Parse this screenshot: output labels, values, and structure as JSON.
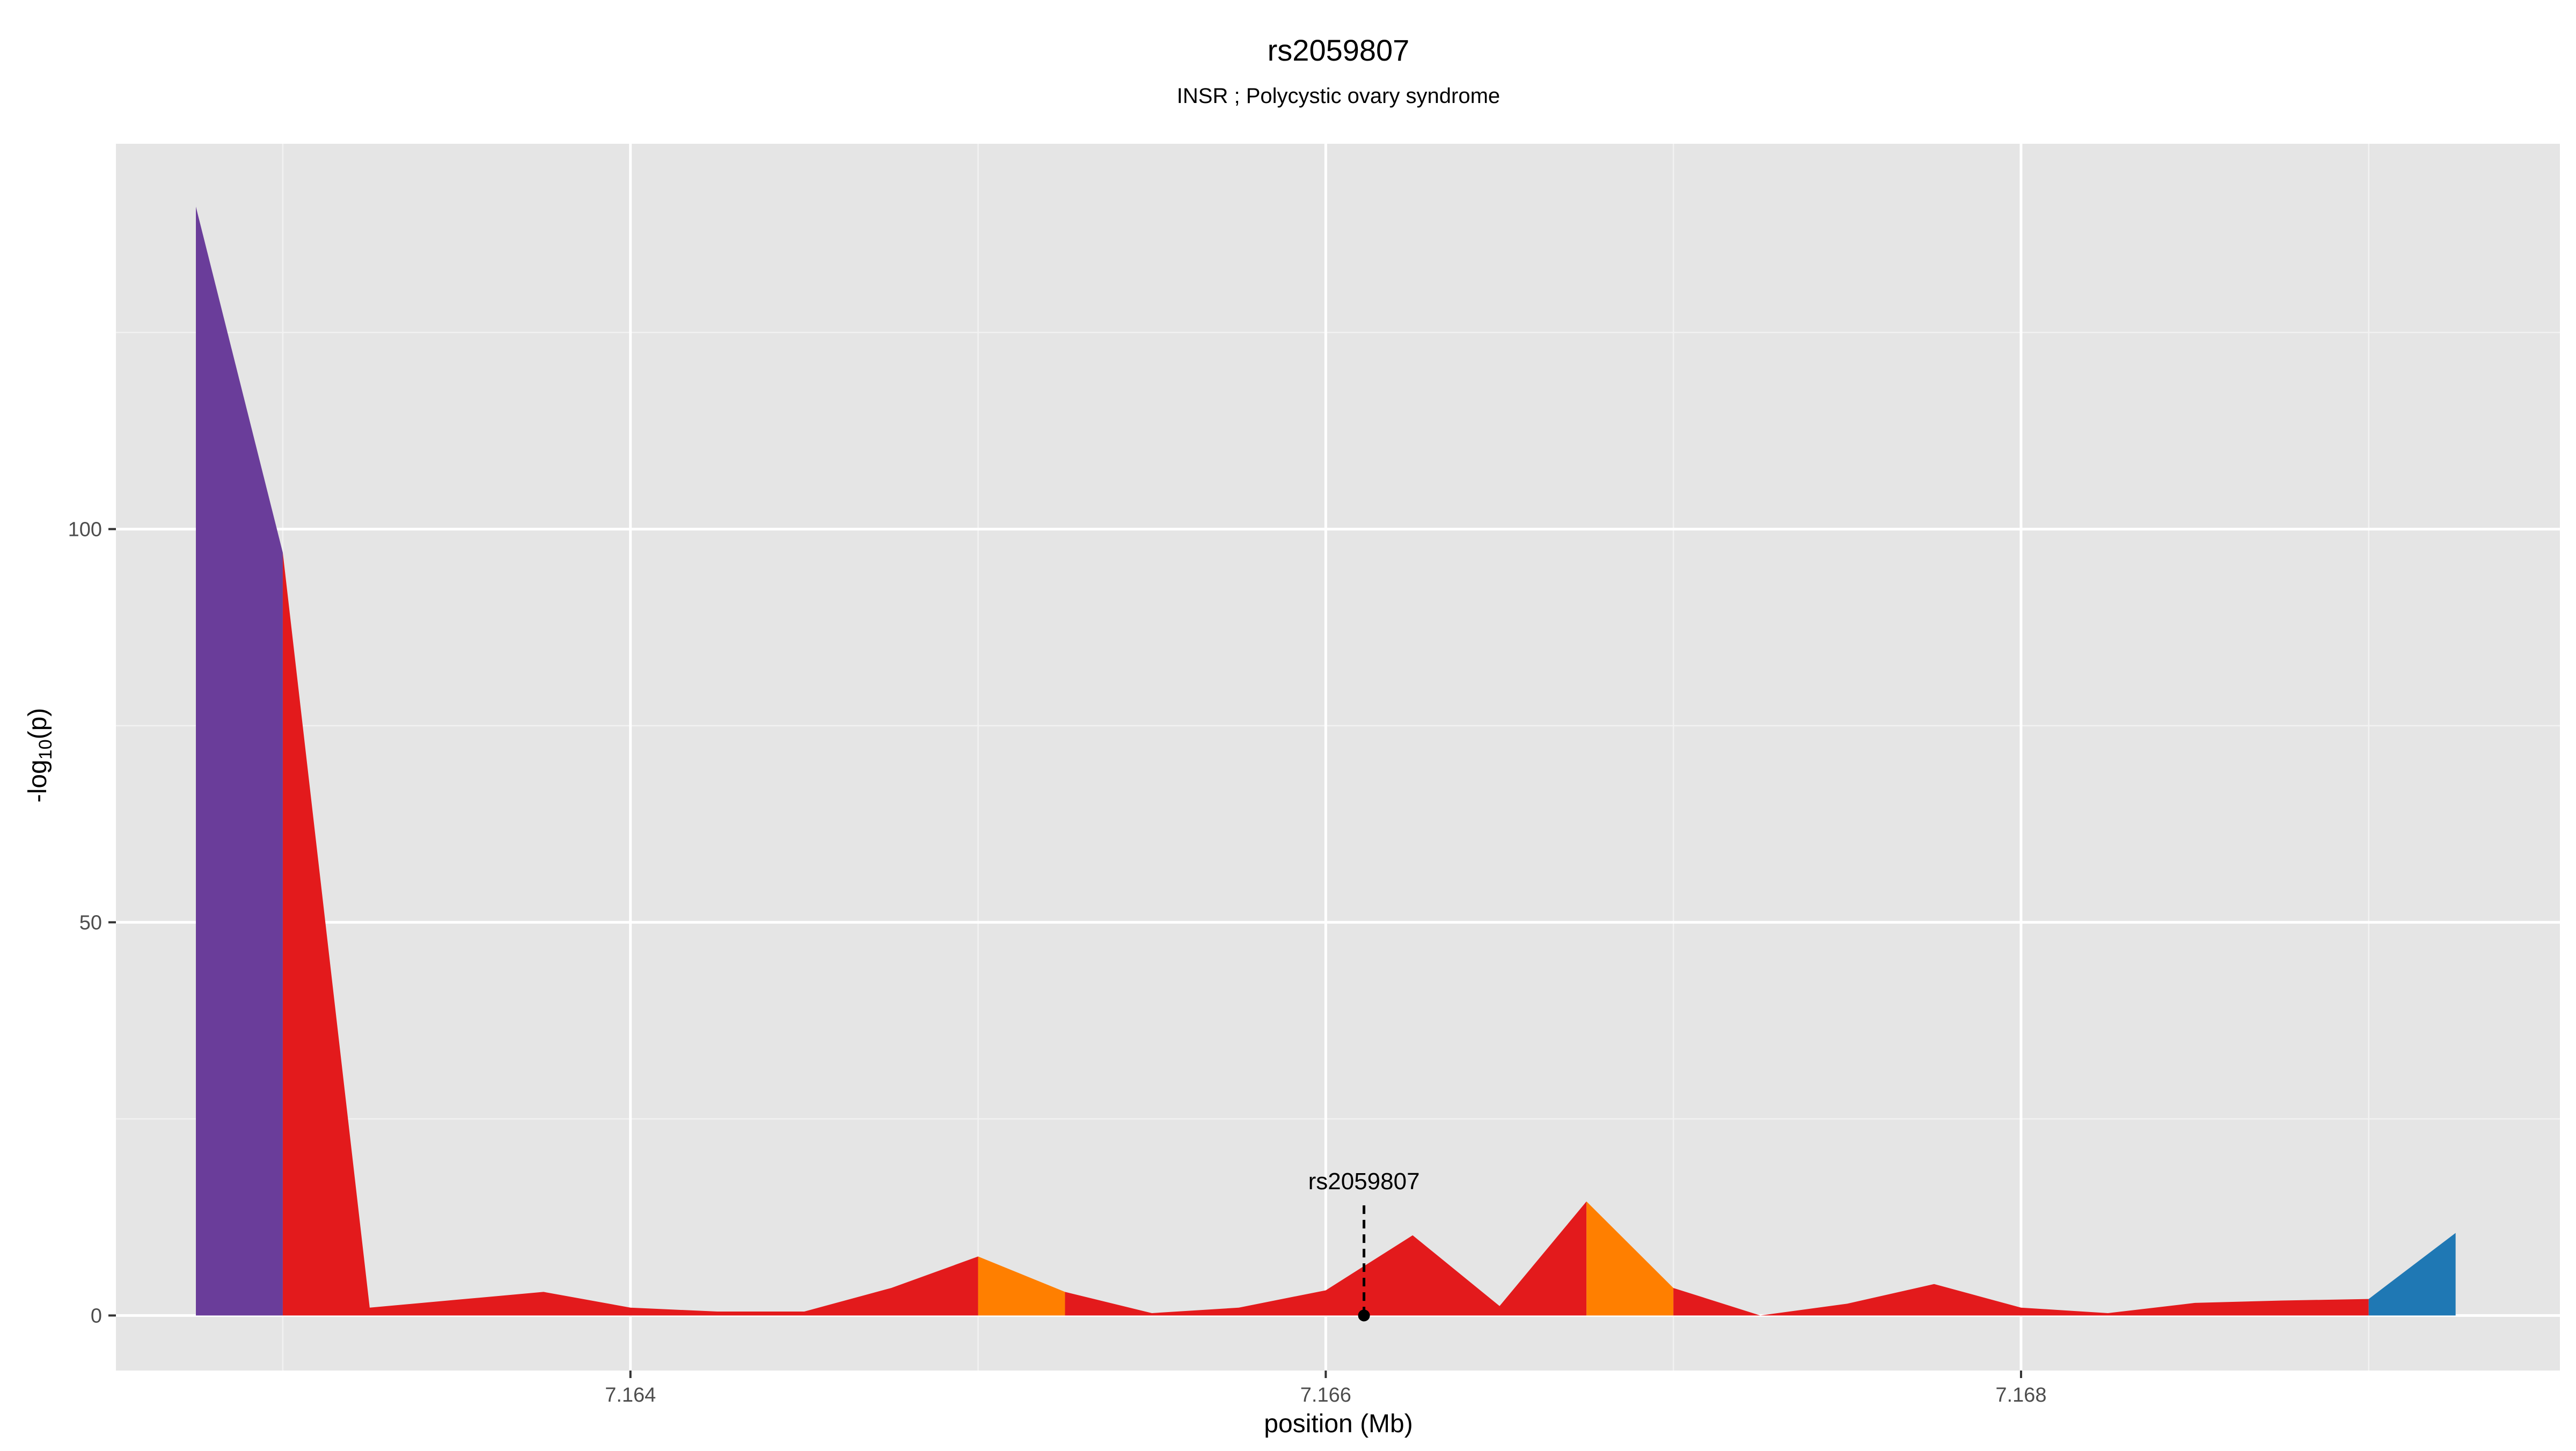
{
  "chart_data": {
    "type": "area",
    "title": "rs2059807",
    "subtitle": "INSR ; Polycystic ovary syndrome",
    "xlabel": "position (Mb)",
    "ylabel_main": "-log",
    "ylabel_sub": "10",
    "ylabel_tail": "(p)",
    "xlim": [
      7.16252,
      7.16955
    ],
    "ylim": [
      -7,
      149
    ],
    "x_ticks": [
      {
        "value": 7.164,
        "label": "7.164"
      },
      {
        "value": 7.166,
        "label": "7.166"
      },
      {
        "value": 7.168,
        "label": "7.168"
      }
    ],
    "y_ticks": [
      {
        "value": 0,
        "label": "0"
      },
      {
        "value": 50,
        "label": "50"
      },
      {
        "value": 100,
        "label": "100"
      }
    ],
    "grid": true,
    "legend": "none",
    "colors": {
      "purple": "#6a3d9a",
      "red": "#e31a1c",
      "orange": "#ff7f00",
      "blue": "#1f78b4",
      "panel_bg": "#e5e5e5",
      "grid_major": "#ffffff",
      "grid_minor": "#f2f2f2",
      "text": "#000000",
      "tick_text": "#4d4d4d"
    },
    "series": [
      {
        "color": "purple",
        "x": [
          7.16275,
          7.163
        ],
        "y": [
          141,
          97
        ]
      },
      {
        "color": "red",
        "x": [
          7.163,
          7.16325,
          7.1635,
          7.16375,
          7.164,
          7.16425,
          7.1645,
          7.16475,
          7.165
        ],
        "y": [
          97,
          1,
          2,
          3,
          1,
          0.5,
          0.5,
          3.5,
          7.5
        ]
      },
      {
        "color": "orange",
        "x": [
          7.165,
          7.16525
        ],
        "y": [
          7.5,
          3
        ]
      },
      {
        "color": "red",
        "x": [
          7.16525,
          7.1655,
          7.16575,
          7.166,
          7.16625,
          7.1665,
          7.16675
        ],
        "y": [
          3,
          0.3,
          1,
          3.2,
          10.2,
          1.2,
          14.5
        ]
      },
      {
        "color": "orange",
        "x": [
          7.16675,
          7.167
        ],
        "y": [
          14.5,
          3.5
        ]
      },
      {
        "color": "red",
        "x": [
          7.167,
          7.16725,
          7.1675,
          7.16775,
          7.168,
          7.16825,
          7.1685,
          7.16875,
          7.169
        ],
        "y": [
          3.5,
          0,
          1.5,
          4,
          1,
          0.3,
          1.6,
          1.9,
          2.1
        ]
      },
      {
        "color": "blue",
        "x": [
          7.169,
          7.16925
        ],
        "y": [
          2.1,
          10.5
        ]
      }
    ],
    "marker": {
      "label": "rs2059807",
      "x": 7.16611,
      "y": 0,
      "line_top_y": 14
    }
  }
}
